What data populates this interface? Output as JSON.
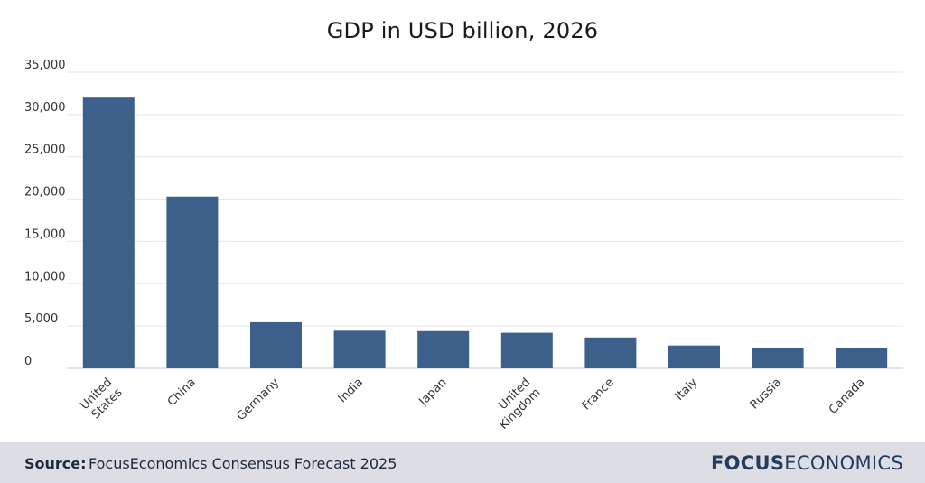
{
  "chart_data": {
    "type": "bar",
    "title": "GDP in USD billion, 2026",
    "categories": [
      [
        "United",
        "States"
      ],
      [
        "China"
      ],
      [
        "Germany"
      ],
      [
        "India"
      ],
      [
        "Japan"
      ],
      [
        "United",
        "Kingdom"
      ],
      [
        "France"
      ],
      [
        "Italy"
      ],
      [
        "Russia"
      ],
      [
        "Canada"
      ]
    ],
    "values": [
      32100,
      20300,
      5450,
      4450,
      4400,
      4200,
      3650,
      2700,
      2450,
      2350
    ],
    "ylim": [
      0,
      35000
    ],
    "yticks": [
      0,
      5000,
      10000,
      15000,
      20000,
      25000,
      30000,
      35000
    ],
    "ytick_labels": [
      "0",
      "5,000",
      "10,000",
      "15,000",
      "20,000",
      "25,000",
      "30,000",
      "35,000"
    ],
    "grid": true,
    "bar_color": "#3c6089",
    "grid_color": "#e6e6e6"
  },
  "footer": {
    "source_label": "Source:",
    "source_text": "FocusEconomics Consensus Forecast 2025",
    "brand_bold": "FOCUS",
    "brand_light": "ECONOMICS"
  }
}
